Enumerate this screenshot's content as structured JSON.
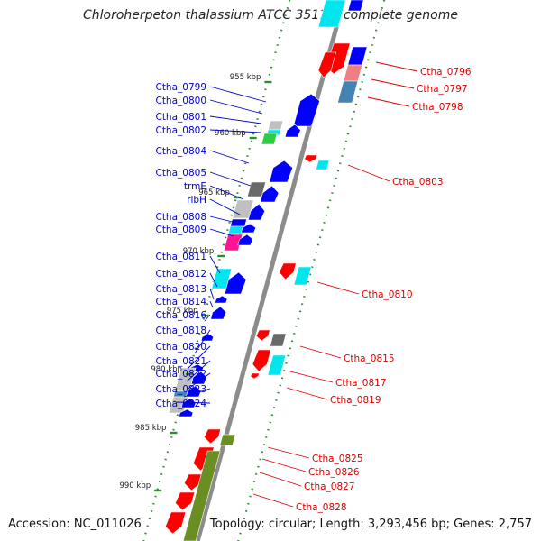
{
  "title": "Chloroherpeton thalassium ATCC 35110, complete genome",
  "accession": "Accession: NC_011026",
  "summary": "Topology: circular; Length: 3,293,456 bp; Genes: 2,757",
  "colors": {
    "backbone": "#8c8c8c",
    "forward_gene": "#0000ff",
    "reverse_gene": "#ff0000",
    "track_dots": "#2e8b2e",
    "left_label": "#0000cc",
    "right_label": "#dd0000"
  },
  "scale_ticks": [
    {
      "label": "955 kbp"
    },
    {
      "label": "960 kbp"
    },
    {
      "label": "965 kbp"
    },
    {
      "label": "970 kbp"
    },
    {
      "label": "975 kbp"
    },
    {
      "label": "980 kbp"
    },
    {
      "label": "985 kbp"
    },
    {
      "label": "990 kbp"
    }
  ],
  "left_genes": [
    {
      "label": "Ctha_0799"
    },
    {
      "label": "Ctha_0800"
    },
    {
      "label": "Ctha_0801"
    },
    {
      "label": "Ctha_0802"
    },
    {
      "label": "Ctha_0804"
    },
    {
      "label": "Ctha_0805"
    },
    {
      "label": "trmE"
    },
    {
      "label": "ribH"
    },
    {
      "label": "Ctha_0808"
    },
    {
      "label": "Ctha_0809"
    },
    {
      "label": "Ctha_0811"
    },
    {
      "label": "Ctha_0812"
    },
    {
      "label": "Ctha_0813"
    },
    {
      "label": "Ctha_0814"
    },
    {
      "label": "Ctha_0816"
    },
    {
      "label": "Ctha_0818"
    },
    {
      "label": "Ctha_0820"
    },
    {
      "label": "Ctha_0821"
    },
    {
      "label": "Ctha_0822"
    },
    {
      "label": "Ctha_0823"
    },
    {
      "label": "Ctha_0824"
    }
  ],
  "right_genes": [
    {
      "label": "Ctha_0796"
    },
    {
      "label": "Ctha_0797"
    },
    {
      "label": "Ctha_0798"
    },
    {
      "label": "Ctha_0803"
    },
    {
      "label": "Ctha_0810"
    },
    {
      "label": "Ctha_0815"
    },
    {
      "label": "Ctha_0817"
    },
    {
      "label": "Ctha_0819"
    },
    {
      "label": "Ctha_0825"
    },
    {
      "label": "Ctha_0826"
    },
    {
      "label": "Ctha_0827"
    },
    {
      "label": "Ctha_0828"
    }
  ]
}
